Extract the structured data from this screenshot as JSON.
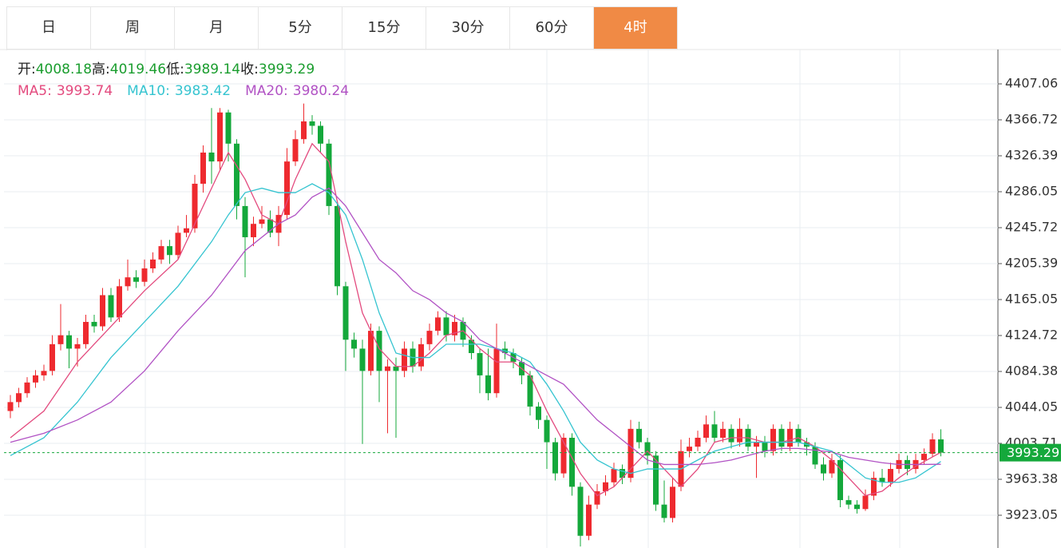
{
  "tabs": [
    "日",
    "周",
    "月",
    "5分",
    "15分",
    "30分",
    "60分",
    "4时"
  ],
  "active_tab": 7,
  "chart_data": {
    "type": "candlestick",
    "info_labels": [
      "开:",
      "高:",
      "低:",
      "收:"
    ],
    "up_color": "#ee2a2f",
    "down_color": "#14a83b",
    "open": [
      4040,
      4050,
      4060,
      4072,
      4080,
      4085,
      4115,
      4125,
      4110,
      4115,
      4140,
      4135,
      4170,
      4145,
      4180,
      4190,
      4185,
      4200,
      4210,
      4225,
      4215,
      4240,
      4245,
      4295,
      4330,
      4320,
      4375,
      4340,
      4270,
      4235,
      4250,
      4255,
      4240,
      4260,
      4320,
      4345,
      4365,
      4360,
      4340,
      4270,
      4180,
      4120,
      4110,
      4085,
      4130,
      4085,
      4090,
      4085,
      4110,
      4090,
      4115,
      4130,
      4145,
      4125,
      4140,
      4120,
      4105,
      4080,
      4060,
      4110,
      4105,
      4095,
      4080,
      4045,
      4030,
      4005,
      3970,
      4010,
      3955,
      3900,
      3935,
      3950,
      3960,
      3975,
      3965,
      4020,
      4005,
      3990,
      3935,
      3920,
      3955,
      3995,
      4000,
      4010,
      4025,
      4010,
      4020,
      4005,
      4020,
      4000,
      4005,
      3995,
      4020,
      4000,
      4020,
      4005,
      4000,
      3980,
      3970,
      3985,
      3940,
      3935,
      3930,
      3945,
      3965,
      3960,
      3975,
      3985,
      3975,
      3985,
      3992,
      4008.18
    ],
    "high": [
      4058,
      4066,
      4078,
      4086,
      4092,
      4125,
      4160,
      4130,
      4122,
      4148,
      4148,
      4178,
      4178,
      4188,
      4210,
      4198,
      4210,
      4218,
      4232,
      4232,
      4248,
      4260,
      4305,
      4338,
      4380,
      4380,
      4378,
      4345,
      4280,
      4258,
      4270,
      4265,
      4270,
      4335,
      4355,
      4385,
      4372,
      4365,
      4345,
      4275,
      4185,
      4128,
      4120,
      4138,
      4135,
      4098,
      4100,
      4118,
      4118,
      4122,
      4138,
      4152,
      4152,
      4148,
      4145,
      4125,
      4110,
      4110,
      4138,
      4118,
      4110,
      4100,
      4085,
      4050,
      4035,
      4010,
      4015,
      4015,
      3960,
      3945,
      3958,
      3968,
      3982,
      3980,
      4030,
      4028,
      4010,
      3995,
      3962,
      3965,
      4008,
      4010,
      4018,
      4035,
      4040,
      4028,
      4025,
      4032,
      4025,
      4012,
      4012,
      4025,
      4025,
      4028,
      4025,
      4010,
      4005,
      3988,
      3992,
      3990,
      3945,
      3940,
      3952,
      3972,
      3975,
      3982,
      3992,
      3990,
      3992,
      3998,
      4015,
      4019.46
    ],
    "low": [
      4032,
      4044,
      4055,
      4066,
      4074,
      4080,
      4108,
      4088,
      4090,
      4110,
      4128,
      4130,
      4140,
      4140,
      4175,
      4178,
      4180,
      4195,
      4205,
      4205,
      4210,
      4235,
      4240,
      4285,
      4295,
      4310,
      4320,
      4255,
      4190,
      4225,
      4245,
      4235,
      4225,
      4255,
      4315,
      4340,
      4350,
      4330,
      4260,
      4170,
      4085,
      4100,
      4003,
      4080,
      4050,
      4015,
      4010,
      4078,
      4083,
      4085,
      4108,
      4125,
      4118,
      4118,
      4112,
      4098,
      4060,
      4052,
      4055,
      4098,
      4088,
      4070,
      4035,
      4020,
      3975,
      3962,
      3965,
      3945,
      3888,
      3895,
      3930,
      3945,
      3955,
      3958,
      3960,
      3998,
      3980,
      3928,
      3915,
      3915,
      3950,
      3988,
      3995,
      4005,
      4005,
      4005,
      3998,
      4000,
      3995,
      3965,
      3988,
      3990,
      3995,
      3995,
      4000,
      3990,
      3975,
      3962,
      3965,
      3932,
      3930,
      3925,
      3928,
      3940,
      3955,
      3955,
      3970,
      3968,
      3970,
      3980,
      3988,
      3989.14
    ],
    "close": [
      4050,
      4060,
      4072,
      4080,
      4085,
      4115,
      4125,
      4110,
      4115,
      4140,
      4135,
      4170,
      4145,
      4180,
      4190,
      4185,
      4200,
      4210,
      4225,
      4215,
      4240,
      4245,
      4295,
      4330,
      4320,
      4375,
      4340,
      4270,
      4235,
      4250,
      4255,
      4240,
      4260,
      4320,
      4345,
      4365,
      4360,
      4340,
      4270,
      4180,
      4120,
      4110,
      4085,
      4130,
      4085,
      4090,
      4085,
      4110,
      4090,
      4115,
      4130,
      4145,
      4125,
      4140,
      4120,
      4105,
      4080,
      4060,
      4110,
      4105,
      4095,
      4080,
      4045,
      4030,
      4005,
      3970,
      4010,
      3955,
      3900,
      3935,
      3950,
      3960,
      3975,
      3965,
      4020,
      4005,
      3990,
      3935,
      3920,
      3955,
      3995,
      4000,
      4010,
      4025,
      4010,
      4020,
      4005,
      4020,
      4000,
      4005,
      3995,
      4020,
      4000,
      4020,
      4005,
      4000,
      3980,
      3970,
      3985,
      3940,
      3935,
      3930,
      3945,
      3965,
      3960,
      3975,
      3985,
      3975,
      3985,
      3992,
      4008.18,
      3993.29
    ],
    "series": [
      {
        "name": "MA5:",
        "color": "#e34a7e",
        "x": [
          0,
          4,
          8,
          12,
          16,
          20,
          24,
          26,
          28,
          30,
          32,
          34,
          36,
          38,
          40,
          42,
          44,
          46,
          48,
          50,
          52,
          54,
          56,
          58,
          60,
          62,
          64,
          66,
          68,
          70,
          72,
          74,
          76,
          78,
          80,
          82,
          84,
          86,
          88,
          90,
          92,
          94,
          96,
          98,
          100,
          102,
          104,
          106,
          108,
          111
        ],
        "values": [
          4010,
          4040,
          4095,
          4135,
          4175,
          4210,
          4290,
          4330,
          4300,
          4260,
          4250,
          4300,
          4340,
          4320,
          4230,
          4150,
          4110,
          4090,
          4090,
          4105,
          4125,
          4130,
          4110,
          4095,
          4095,
          4080,
          4040,
          4005,
          3970,
          3945,
          3955,
          3975,
          3995,
          3975,
          3955,
          3975,
          4005,
          4010,
          4010,
          4005,
          4005,
          4010,
          4000,
          3985,
          3965,
          3945,
          3950,
          3965,
          3978,
          3993.74
        ]
      },
      {
        "name": "MA10:",
        "color": "#35c4d0",
        "x": [
          0,
          4,
          8,
          12,
          16,
          20,
          24,
          26,
          28,
          30,
          32,
          34,
          36,
          38,
          40,
          42,
          44,
          46,
          48,
          50,
          52,
          54,
          56,
          58,
          60,
          62,
          64,
          66,
          68,
          70,
          72,
          74,
          76,
          78,
          80,
          82,
          84,
          86,
          88,
          90,
          92,
          94,
          96,
          98,
          100,
          102,
          104,
          106,
          108,
          111
        ],
        "values": [
          3990,
          4010,
          4050,
          4100,
          4140,
          4180,
          4230,
          4260,
          4285,
          4290,
          4285,
          4285,
          4295,
          4285,
          4260,
          4210,
          4150,
          4105,
          4100,
          4100,
          4115,
          4115,
          4115,
          4110,
          4105,
          4095,
          4070,
          4040,
          4005,
          3985,
          3975,
          3970,
          3975,
          3975,
          3975,
          3985,
          3995,
          4000,
          4005,
          4005,
          4005,
          4005,
          4000,
          3995,
          3980,
          3965,
          3960,
          3960,
          3965,
          3983.42
        ]
      },
      {
        "name": "MA20:",
        "color": "#b152c4",
        "x": [
          0,
          4,
          8,
          12,
          16,
          20,
          24,
          28,
          32,
          34,
          36,
          38,
          40,
          42,
          44,
          46,
          48,
          50,
          52,
          54,
          56,
          58,
          60,
          62,
          64,
          66,
          68,
          70,
          72,
          74,
          76,
          78,
          80,
          82,
          84,
          86,
          88,
          90,
          92,
          94,
          96,
          98,
          100,
          102,
          104,
          106,
          108,
          111
        ],
        "values": [
          4005,
          4015,
          4030,
          4050,
          4085,
          4130,
          4170,
          4220,
          4250,
          4260,
          4280,
          4290,
          4270,
          4240,
          4210,
          4195,
          4175,
          4165,
          4150,
          4140,
          4120,
          4110,
          4100,
          4090,
          4080,
          4070,
          4050,
          4030,
          4015,
          4000,
          3985,
          3980,
          3980,
          3980,
          3982,
          3985,
          3990,
          3995,
          3998,
          3998,
          3996,
          3994,
          3988,
          3985,
          3982,
          3980,
          3980,
          3980.24
        ]
      }
    ],
    "ylim": [
      3886.3,
      4445.6
    ],
    "yticks": [
      4407.06,
      4366.72,
      4326.39,
      4286.05,
      4245.72,
      4205.39,
      4165.05,
      4124.72,
      4084.38,
      4044.05,
      4003.71,
      3963.38,
      3923.05
    ],
    "grid": true
  }
}
